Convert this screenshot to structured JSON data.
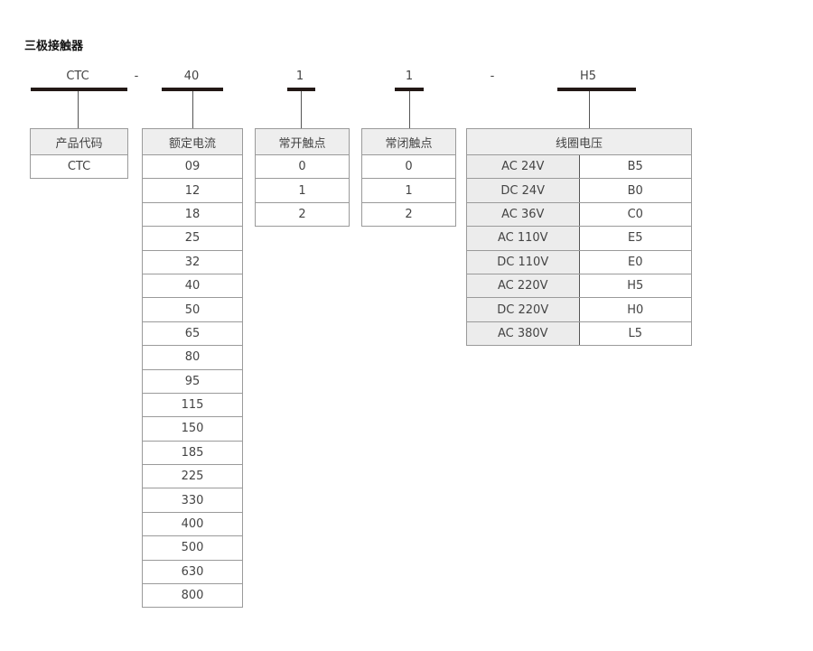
{
  "title": "三极接触器",
  "model": {
    "parts": [
      "CTC",
      "-",
      "40",
      "1",
      "1",
      "-",
      "H5"
    ]
  },
  "tables": {
    "product_code": {
      "header": "产品代码",
      "rows": [
        "CTC"
      ]
    },
    "rated_current": {
      "header": "额定电流",
      "rows": [
        "09",
        "12",
        "18",
        "25",
        "32",
        "40",
        "50",
        "65",
        "80",
        "95",
        "115",
        "150",
        "185",
        "225",
        "330",
        "400",
        "500",
        "630",
        "800"
      ]
    },
    "no_contacts": {
      "header": "常开触点",
      "rows": [
        "0",
        "1",
        "2"
      ]
    },
    "nc_contacts": {
      "header": "常闭触点",
      "rows": [
        "0",
        "1",
        "2"
      ]
    },
    "coil_voltage": {
      "header": "线圈电压",
      "rows": [
        {
          "voltage": "AC 24V",
          "code": "B5"
        },
        {
          "voltage": "DC 24V",
          "code": "B0"
        },
        {
          "voltage": "AC 36V",
          "code": "C0"
        },
        {
          "voltage": "AC 110V",
          "code": "E5"
        },
        {
          "voltage": "DC 110V",
          "code": "E0"
        },
        {
          "voltage": "AC 220V",
          "code": "H5"
        },
        {
          "voltage": "DC 220V",
          "code": "H0"
        },
        {
          "voltage": "AC 380V",
          "code": "L5"
        }
      ]
    }
  }
}
